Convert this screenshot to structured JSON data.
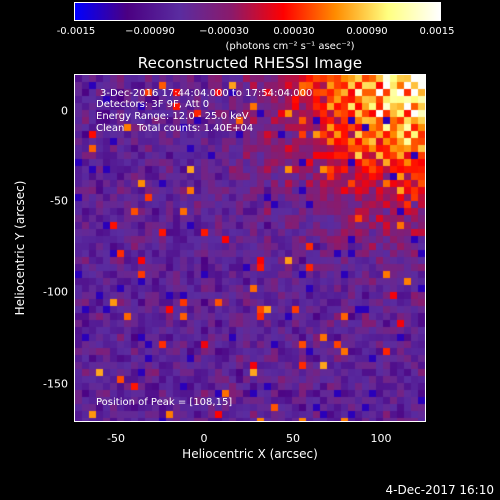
{
  "colorbar": {
    "ticks": [
      "-0.0015",
      "−0.00090",
      "−0.00030",
      "0.00030",
      "0.00090",
      "0.0015"
    ],
    "unit": "(photons cm⁻² s⁻¹ asec⁻²)",
    "colors": [
      "#0000ff",
      "#4b0082",
      "#5a2ca0",
      "#8b1a6b",
      "#ff0000",
      "#ff8c00",
      "#ffff80",
      "#ffffff"
    ]
  },
  "plot": {
    "title": "Reconstructed RHESSI Image",
    "xlabel": "Heliocentric X (arcsec)",
    "ylabel": "Heliocentric Y (arcsec)",
    "xticks": [
      "-50",
      "0",
      "50",
      "100"
    ],
    "yticks": [
      "0",
      "-50",
      "-100",
      "-150"
    ],
    "annotations": {
      "time_range": "3-Dec-2016 17:44:04.000 to 17:54:04.000",
      "detectors": "Detectors: 3F 9F, Att 0",
      "energy": "Energy Range: 12.0 - 25.0 keV",
      "clean": "Clean    Total counts: 1.40E+04",
      "peak": "Position of Peak = [108,15]"
    }
  },
  "timestamp": "4-Dec-2017 16:10"
}
